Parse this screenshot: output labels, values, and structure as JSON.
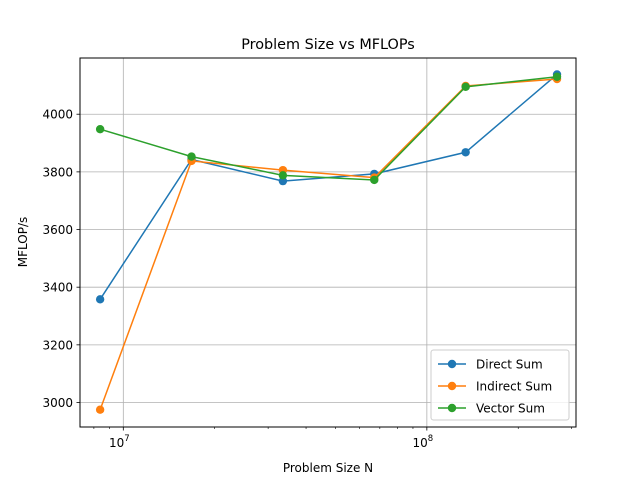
{
  "chart_data": {
    "type": "line",
    "title": "Problem Size vs MFLOPs",
    "xlabel": "Problem Size N",
    "ylabel": "MFLOP/s",
    "x_scale": "log",
    "xlim": [
      7200000,
      310000000
    ],
    "ylim": [
      2915,
      4195
    ],
    "grid": true,
    "legend_position": "lower right",
    "x": [
      8388608,
      16777216,
      33554432,
      67108864,
      134217728,
      268435456
    ],
    "x_ticks": [
      {
        "value": 10000000,
        "base": "10",
        "exp": "7"
      },
      {
        "value": 100000000,
        "base": "10",
        "exp": "8"
      }
    ],
    "y_ticks": [
      3000,
      3200,
      3400,
      3600,
      3800,
      4000
    ],
    "series": [
      {
        "name": "Direct Sum",
        "color": "#1f77b4",
        "values": [
          3358,
          3843,
          3768,
          3793,
          3868,
          4138
        ]
      },
      {
        "name": "Indirect Sum",
        "color": "#ff7f0e",
        "values": [
          2975,
          3838,
          3806,
          3780,
          4098,
          4122
        ]
      },
      {
        "name": "Vector Sum",
        "color": "#2ca02c",
        "values": [
          3948,
          3853,
          3788,
          3772,
          4095,
          4130
        ]
      }
    ]
  }
}
